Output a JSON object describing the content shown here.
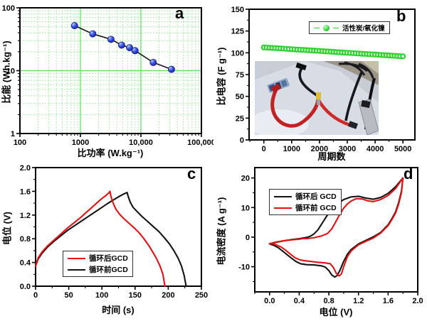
{
  "figure": {
    "background": "#ffffff"
  },
  "colors": {
    "grid_minor": "#8ce98c",
    "grid_major": "#57e057",
    "blue_marker": "#2b3bd6",
    "green_marker": "#2ad42a",
    "red_curve": "#e31212",
    "black_curve": "#141414"
  },
  "chart_data": [
    {
      "id": "a",
      "type": "scatter",
      "panel_label": "a",
      "xlabel": "比功率 (W.kg⁻¹)",
      "ylabel": "比能 (Wh.kg⁻¹)",
      "xscale": "log",
      "yscale": "log",
      "xlim": [
        100,
        100000
      ],
      "ylim": [
        1,
        100
      ],
      "xticks": {
        "values": [
          100,
          1000,
          10000,
          100000
        ],
        "labels": [
          "100",
          "1000",
          "10,000",
          "100,000"
        ]
      },
      "yticks": {
        "values": [
          1,
          10,
          100
        ],
        "labels": [
          "1",
          "10",
          "100"
        ]
      },
      "grid": {
        "show": true,
        "minor_color": "#8ce98c",
        "major_color": "#57e057"
      },
      "line_color": "#151515",
      "marker": {
        "shape": "sphere",
        "color": "#2b3bd6",
        "edge": "#0c1170"
      },
      "x": [
        800,
        1600,
        3200,
        4800,
        6500,
        8000,
        16000,
        32000
      ],
      "y": [
        52,
        38.5,
        31.5,
        25.5,
        23.2,
        20.8,
        13.5,
        10.5
      ],
      "plot": [
        28,
        11,
        283,
        188
      ]
    },
    {
      "id": "b",
      "type": "scatter",
      "panel_label": "b",
      "xlabel": "周期数",
      "ylabel": "比电容 (F g⁻¹)",
      "xscale": "linear",
      "yscale": "linear",
      "xlim": [
        -530,
        5430
      ],
      "ylim": [
        0,
        150
      ],
      "xticks": {
        "values": [
          0,
          1000,
          2000,
          3000,
          4000,
          5000
        ],
        "labels": [
          "0",
          "1000",
          "2000",
          "3000",
          "4000",
          "5000"
        ],
        "minor_step": 500
      },
      "yticks": {
        "values": [
          0,
          25,
          50,
          75,
          100,
          125,
          150
        ],
        "labels": [
          "0",
          "25",
          "50",
          "75",
          "100",
          "125",
          "150"
        ],
        "minor_step": 12.5
      },
      "series": [
        {
          "name": "活性炭/氧化镍",
          "color": "#2ad42a",
          "x": [
            0,
            100,
            200,
            300,
            400,
            500,
            600,
            700,
            800,
            900,
            1000,
            1100,
            1200,
            1300,
            1400,
            1500,
            1600,
            1700,
            1800,
            1900,
            2000,
            2100,
            2200,
            2300,
            2400,
            2500,
            2600,
            2700,
            2800,
            2900,
            3000,
            3100,
            3200,
            3300,
            3400,
            3500,
            3600,
            3700,
            3800,
            3900,
            4000,
            4100,
            4200,
            4300,
            4400,
            4500,
            4600,
            4700,
            4800,
            4900,
            5000
          ],
          "y": [
            106.2,
            106.0,
            105.8,
            105.6,
            105.4,
            105.2,
            105.0,
            104.8,
            104.6,
            104.3,
            104.1,
            103.9,
            103.7,
            103.5,
            103.3,
            103.1,
            102.9,
            102.7,
            102.5,
            102.3,
            102.1,
            101.9,
            101.7,
            101.5,
            101.3,
            101.1,
            100.8,
            100.6,
            100.4,
            100.2,
            100.0,
            99.8,
            99.6,
            99.4,
            99.2,
            99.0,
            98.8,
            98.6,
            98.4,
            98.2,
            98.0,
            97.8,
            97.5,
            97.3,
            97.1,
            96.9,
            96.7,
            96.5,
            96.3,
            96.1,
            95.9
          ]
        }
      ],
      "plot": [
        50,
        13,
        283,
        197
      ]
    },
    {
      "id": "c",
      "type": "line",
      "panel_label": "c",
      "xlabel": "时间 (s)",
      "ylabel": "电位 (V)",
      "xscale": "linear",
      "yscale": "linear",
      "xlim": [
        0,
        250
      ],
      "ylim": [
        0,
        2.0
      ],
      "xticks": {
        "values": [
          0,
          50,
          100,
          150,
          200,
          250
        ],
        "labels": [
          "0",
          "50",
          "100",
          "150",
          "200",
          "250"
        ],
        "minor_step": 25
      },
      "yticks": {
        "values": [
          0,
          0.4,
          0.8,
          1.2,
          1.6,
          2.0
        ],
        "labels": [
          "0.0",
          "0.4",
          "0.8",
          "1.2",
          "1.6",
          "2.0"
        ],
        "minor_step": 0.2
      },
      "draw": "reverse",
      "series": [
        {
          "name": "循环后GCD",
          "color": "#e31212",
          "points": [
            [
              0,
              0.34
            ],
            [
              4,
              0.48
            ],
            [
              10,
              0.58
            ],
            [
              18,
              0.68
            ],
            [
              28,
              0.78
            ],
            [
              38,
              0.88
            ],
            [
              48,
              0.98
            ],
            [
              58,
              1.07
            ],
            [
              68,
              1.16
            ],
            [
              78,
              1.26
            ],
            [
              88,
              1.36
            ],
            [
              98,
              1.46
            ],
            [
              106,
              1.53
            ],
            [
              111,
              1.58
            ],
            [
              112,
              1.6
            ],
            [
              114,
              1.5
            ],
            [
              117,
              1.4
            ],
            [
              121,
              1.3
            ],
            [
              127,
              1.21
            ],
            [
              134,
              1.13
            ],
            [
              141,
              1.06
            ],
            [
              149,
              0.98
            ],
            [
              157,
              0.89
            ],
            [
              164,
              0.79
            ],
            [
              171,
              0.68
            ],
            [
              177,
              0.57
            ],
            [
              183,
              0.45
            ],
            [
              188,
              0.33
            ],
            [
              192,
              0.2
            ],
            [
              195,
              0.0
            ]
          ]
        },
        {
          "name": "循环前GCD",
          "color": "#141414",
          "points": [
            [
              0,
              0.34
            ],
            [
              4,
              0.46
            ],
            [
              10,
              0.56
            ],
            [
              18,
              0.66
            ],
            [
              28,
              0.76
            ],
            [
              38,
              0.85
            ],
            [
              48,
              0.94
            ],
            [
              60,
              1.03
            ],
            [
              72,
              1.12
            ],
            [
              84,
              1.21
            ],
            [
              96,
              1.3
            ],
            [
              108,
              1.39
            ],
            [
              118,
              1.46
            ],
            [
              127,
              1.52
            ],
            [
              134,
              1.56
            ],
            [
              138,
              1.58
            ],
            [
              140,
              1.5
            ],
            [
              143,
              1.41
            ],
            [
              147,
              1.33
            ],
            [
              153,
              1.26
            ],
            [
              160,
              1.18
            ],
            [
              168,
              1.1
            ],
            [
              177,
              1.01
            ],
            [
              186,
              0.92
            ],
            [
              194,
              0.82
            ],
            [
              202,
              0.71
            ],
            [
              209,
              0.59
            ],
            [
              215,
              0.47
            ],
            [
              220,
              0.34
            ],
            [
              224,
              0.18
            ],
            [
              227,
              0.0
            ]
          ]
        }
      ],
      "plot": [
        50,
        10,
        283,
        177
      ]
    },
    {
      "id": "d",
      "type": "line",
      "panel_label": "d",
      "xlabel": "电位 (V)",
      "ylabel": "电流密度 (A g⁻¹)",
      "xscale": "linear",
      "yscale": "linear",
      "xlim": [
        -0.2,
        2.0
      ],
      "ylim": [
        -18.5,
        23.5
      ],
      "xticks": {
        "values": [
          0,
          0.4,
          0.8,
          1.2,
          1.6,
          2.0
        ],
        "labels": [
          "0.0",
          "0.4",
          "0.8",
          "1.2",
          "1.6",
          "2.0"
        ],
        "minor_step": 0.2
      },
      "yticks": {
        "values": [
          -10,
          0,
          10,
          20
        ],
        "labels": [
          "-10",
          "0",
          "10",
          "20"
        ],
        "minor_step": 5
      },
      "draw": "forward",
      "series": [
        {
          "name": "循环后 GCD",
          "color": "#141414",
          "points": [
            [
              0.0,
              -2.3
            ],
            [
              0.05,
              -2.0
            ],
            [
              0.1,
              -1.7
            ],
            [
              0.2,
              -1.2
            ],
            [
              0.3,
              -0.8
            ],
            [
              0.4,
              -0.5
            ],
            [
              0.5,
              -0.1
            ],
            [
              0.55,
              0.3
            ],
            [
              0.6,
              1.1
            ],
            [
              0.65,
              2.4
            ],
            [
              0.7,
              4.3
            ],
            [
              0.75,
              6.3
            ],
            [
              0.8,
              8.2
            ],
            [
              0.85,
              9.7
            ],
            [
              0.9,
              10.9
            ],
            [
              1.0,
              12.7
            ],
            [
              1.1,
              13.6
            ],
            [
              1.2,
              13.8
            ],
            [
              1.3,
              13.2
            ],
            [
              1.4,
              12.8
            ],
            [
              1.5,
              13.4
            ],
            [
              1.6,
              14.8
            ],
            [
              1.7,
              17.0
            ],
            [
              1.8,
              20.0
            ],
            [
              1.78,
              15.5
            ],
            [
              1.74,
              11.5
            ],
            [
              1.7,
              8.5
            ],
            [
              1.65,
              6.2
            ],
            [
              1.6,
              4.2
            ],
            [
              1.5,
              1.6
            ],
            [
              1.4,
              0.1
            ],
            [
              1.3,
              -1.1
            ],
            [
              1.2,
              -2.3
            ],
            [
              1.1,
              -4.2
            ],
            [
              1.05,
              -5.8
            ],
            [
              1.0,
              -8.2
            ],
            [
              0.95,
              -11.2
            ],
            [
              0.91,
              -13.0
            ],
            [
              0.88,
              -13.5
            ],
            [
              0.84,
              -12.8
            ],
            [
              0.8,
              -11.3
            ],
            [
              0.75,
              -10.1
            ],
            [
              0.7,
              -9.7
            ],
            [
              0.6,
              -9.4
            ],
            [
              0.5,
              -9.3
            ],
            [
              0.42,
              -9.0
            ],
            [
              0.36,
              -8.3
            ],
            [
              0.3,
              -7.2
            ],
            [
              0.24,
              -6.0
            ],
            [
              0.18,
              -4.8
            ],
            [
              0.12,
              -3.6
            ],
            [
              0.06,
              -2.8
            ],
            [
              0.0,
              -2.3
            ]
          ]
        },
        {
          "name": "循环前 GCD",
          "color": "#e31212",
          "points": [
            [
              0.0,
              -2.2
            ],
            [
              0.05,
              -1.9
            ],
            [
              0.1,
              -1.6
            ],
            [
              0.2,
              -1.2
            ],
            [
              0.3,
              -0.9
            ],
            [
              0.4,
              -0.7
            ],
            [
              0.45,
              -0.5
            ],
            [
              0.5,
              -0.5
            ],
            [
              0.6,
              -0.2
            ],
            [
              0.7,
              0.4
            ],
            [
              0.78,
              1.2
            ],
            [
              0.84,
              2.8
            ],
            [
              0.9,
              5.5
            ],
            [
              0.95,
              7.8
            ],
            [
              1.0,
              9.8
            ],
            [
              1.05,
              11.2
            ],
            [
              1.1,
              12.2
            ],
            [
              1.17,
              13.0
            ],
            [
              1.25,
              12.9
            ],
            [
              1.32,
              12.3
            ],
            [
              1.4,
              12.0
            ],
            [
              1.5,
              12.7
            ],
            [
              1.6,
              14.1
            ],
            [
              1.7,
              16.4
            ],
            [
              1.8,
              20.0
            ],
            [
              1.78,
              15.0
            ],
            [
              1.74,
              11.0
            ],
            [
              1.7,
              8.1
            ],
            [
              1.65,
              5.9
            ],
            [
              1.6,
              3.9
            ],
            [
              1.5,
              1.4
            ],
            [
              1.4,
              -0.3
            ],
            [
              1.3,
              -1.4
            ],
            [
              1.2,
              -2.6
            ],
            [
              1.1,
              -4.7
            ],
            [
              1.05,
              -6.6
            ],
            [
              1.0,
              -10.0
            ],
            [
              0.97,
              -12.4
            ],
            [
              0.94,
              -13.1
            ],
            [
              0.9,
              -12.2
            ],
            [
              0.86,
              -10.2
            ],
            [
              0.82,
              -9.0
            ],
            [
              0.75,
              -8.7
            ],
            [
              0.65,
              -8.5
            ],
            [
              0.55,
              -8.2
            ],
            [
              0.45,
              -7.9
            ],
            [
              0.4,
              -7.6
            ],
            [
              0.34,
              -6.9
            ],
            [
              0.28,
              -5.7
            ],
            [
              0.22,
              -4.5
            ],
            [
              0.16,
              -3.4
            ],
            [
              0.1,
              -2.7
            ],
            [
              0.05,
              -2.3
            ],
            [
              0.0,
              -2.2
            ]
          ]
        }
      ],
      "plot": [
        58,
        10,
        287,
        185
      ]
    }
  ]
}
